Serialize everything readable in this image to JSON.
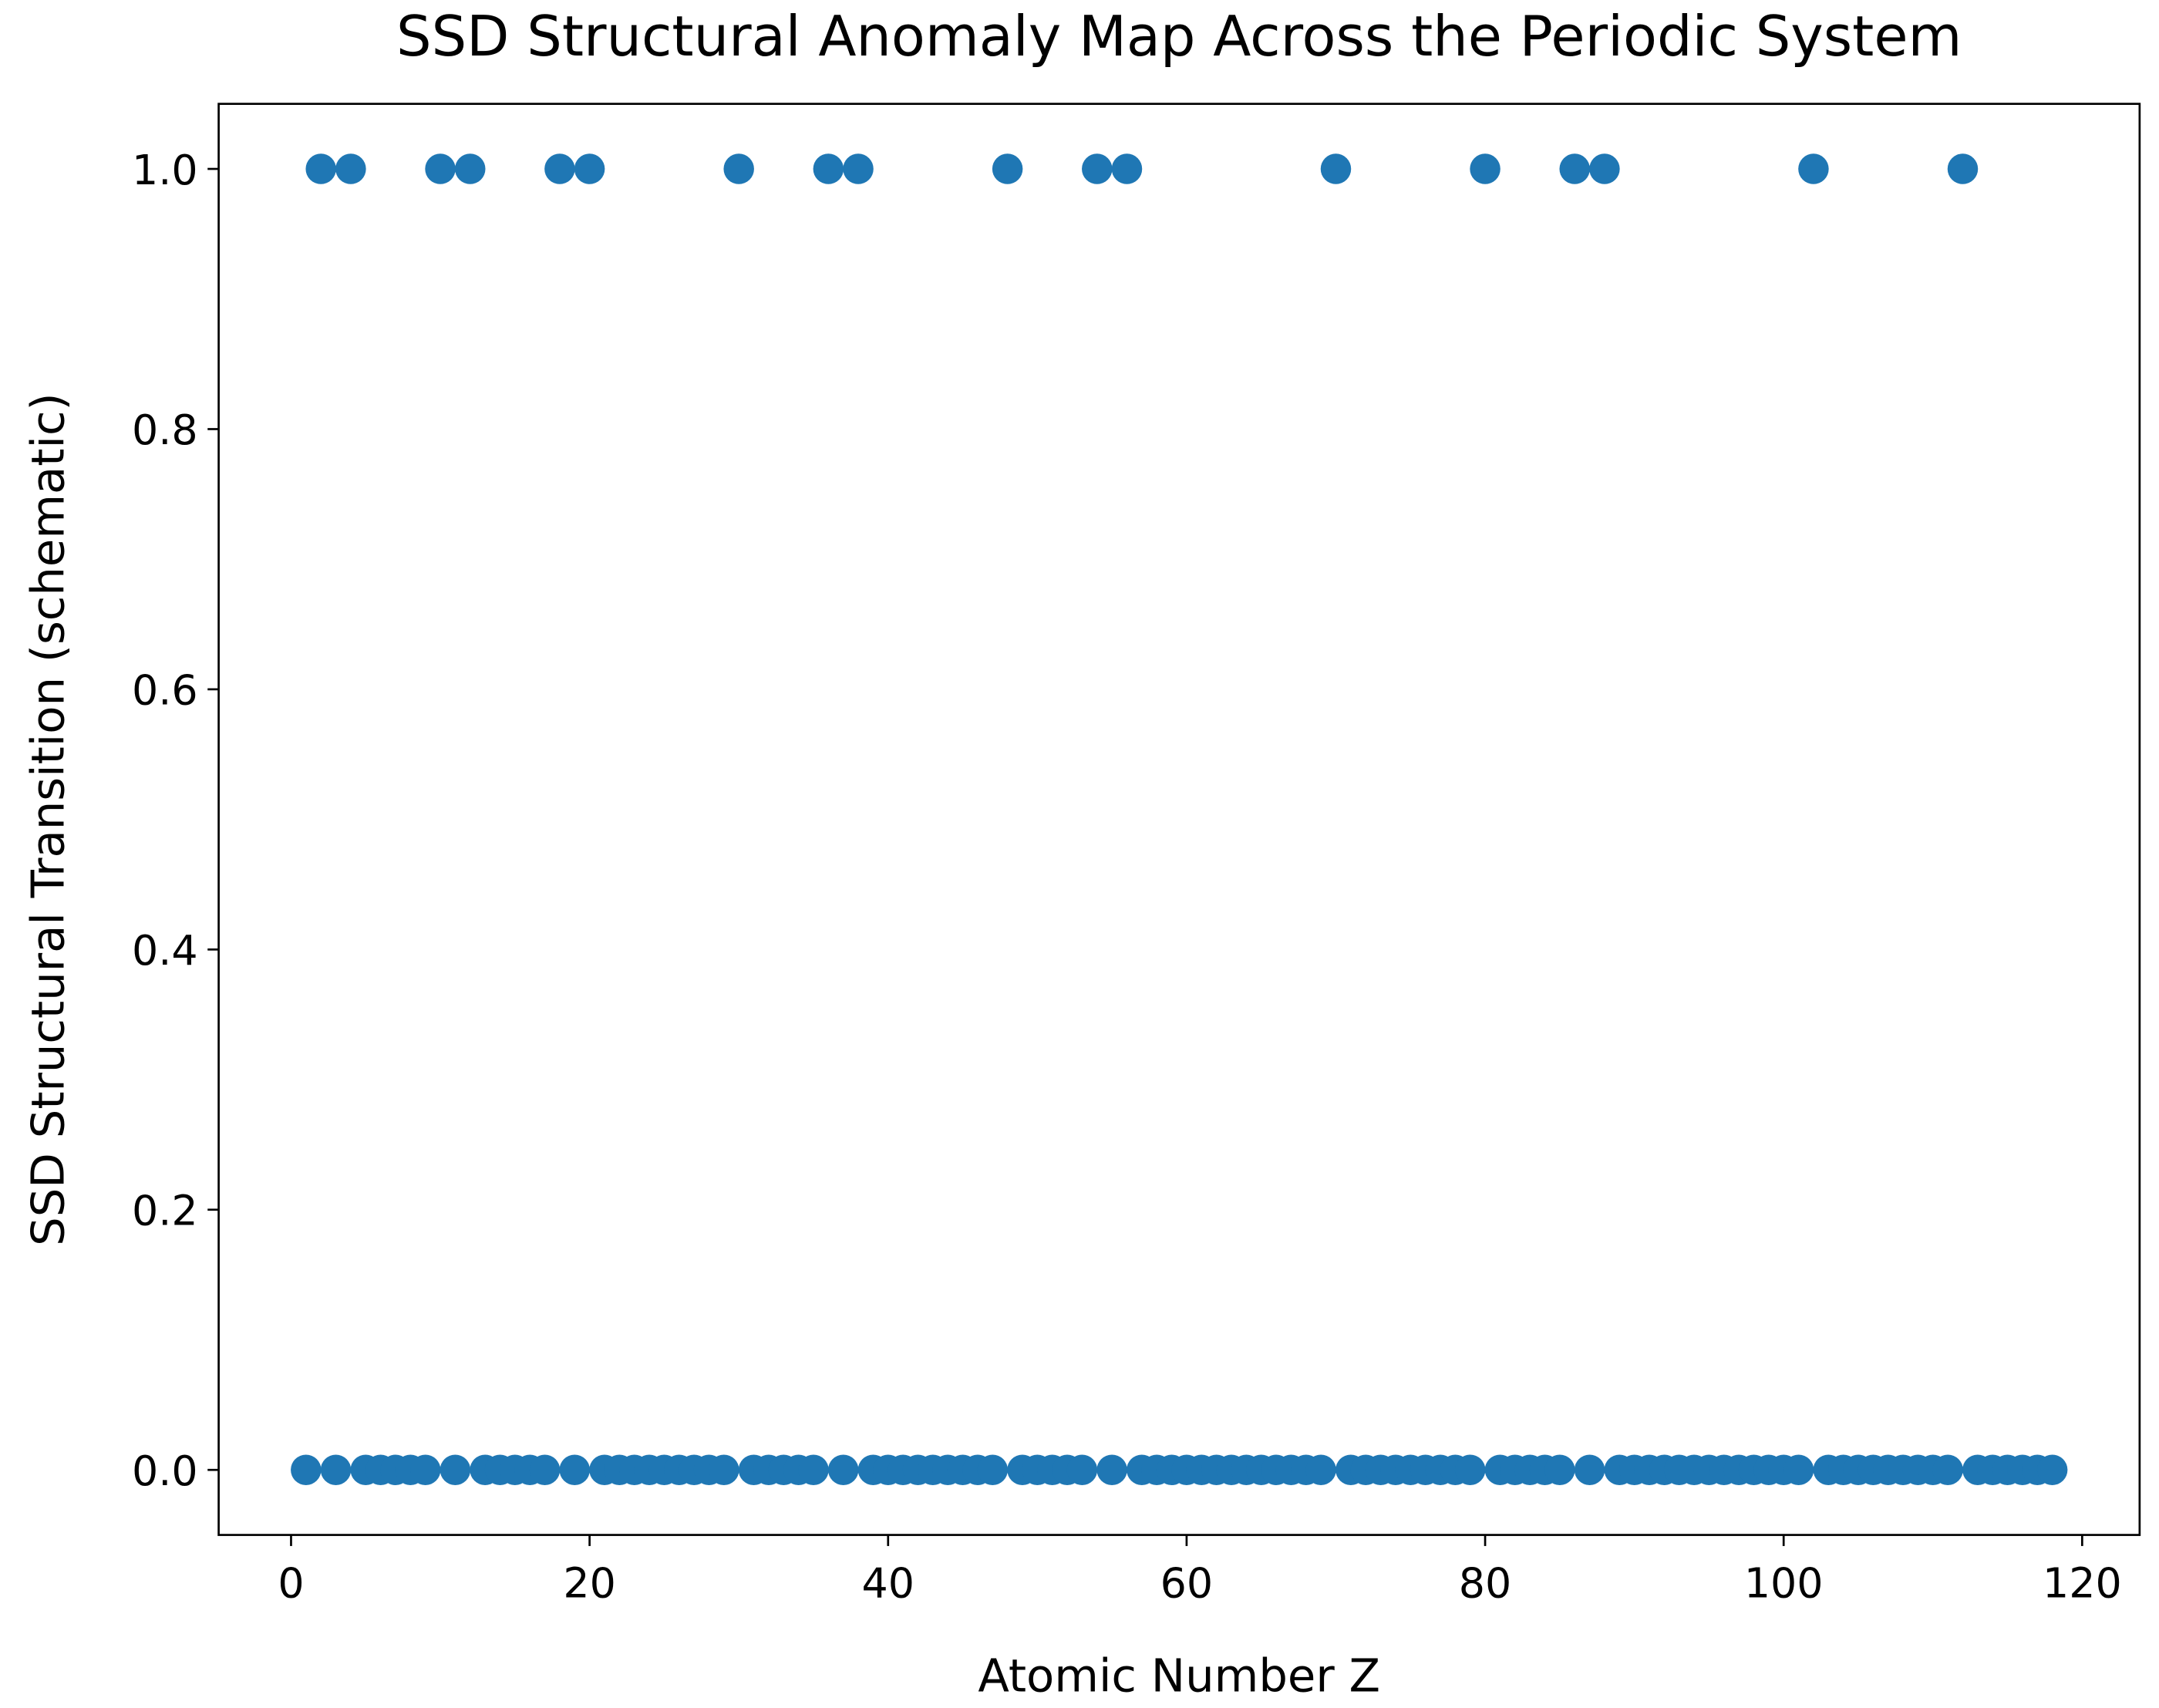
{
  "chart_data": {
    "type": "scatter",
    "title": "SSD Structural Anomaly Map Across the Periodic System",
    "x_label": "Atomic Number Z",
    "y_label": "SSD Structural Transition (schematic)",
    "color": "#1f77b4",
    "x": [
      1,
      2,
      3,
      4,
      5,
      6,
      7,
      8,
      9,
      10,
      11,
      12,
      13,
      14,
      15,
      16,
      17,
      18,
      19,
      20,
      21,
      22,
      23,
      24,
      25,
      26,
      27,
      28,
      29,
      30,
      31,
      32,
      33,
      34,
      35,
      36,
      37,
      38,
      39,
      40,
      41,
      42,
      43,
      44,
      45,
      46,
      47,
      48,
      49,
      50,
      51,
      52,
      53,
      54,
      55,
      56,
      57,
      58,
      59,
      60,
      61,
      62,
      63,
      64,
      65,
      66,
      67,
      68,
      69,
      70,
      71,
      72,
      73,
      74,
      75,
      76,
      77,
      78,
      79,
      80,
      81,
      82,
      83,
      84,
      85,
      86,
      87,
      88,
      89,
      90,
      91,
      92,
      93,
      94,
      95,
      96,
      97,
      98,
      99,
      100,
      101,
      102,
      103,
      104,
      105,
      106,
      107,
      108,
      109,
      110,
      111,
      112,
      113,
      114,
      115,
      116,
      117,
      118
    ],
    "values": [
      0,
      1,
      0,
      1,
      0,
      0,
      0,
      0,
      0,
      1,
      0,
      1,
      0,
      0,
      0,
      0,
      0,
      1,
      0,
      1,
      0,
      0,
      0,
      0,
      0,
      0,
      0,
      0,
      0,
      1,
      0,
      0,
      0,
      0,
      0,
      1,
      0,
      1,
      0,
      0,
      0,
      0,
      0,
      0,
      0,
      0,
      0,
      1,
      0,
      0,
      0,
      0,
      0,
      1,
      0,
      1,
      0,
      0,
      0,
      0,
      0,
      0,
      0,
      0,
      0,
      0,
      0,
      0,
      0,
      1,
      0,
      0,
      0,
      0,
      0,
      0,
      0,
      0,
      0,
      1,
      0,
      0,
      0,
      0,
      0,
      1,
      0,
      1,
      0,
      0,
      0,
      0,
      0,
      0,
      0,
      0,
      0,
      0,
      0,
      0,
      0,
      1,
      0,
      0,
      0,
      0,
      0,
      0,
      0,
      0,
      0,
      1,
      0,
      0,
      0,
      0,
      0,
      0
    ],
    "xlim": [
      -4.85,
      123.85
    ],
    "xticks": [
      0,
      20,
      40,
      60,
      80,
      100,
      120
    ],
    "ylim": [
      -0.05,
      1.05
    ],
    "yticks": [
      {
        "value": 0,
        "label": "0.0"
      },
      {
        "value": 0.2,
        "label": "0.2"
      },
      {
        "value": 0.4,
        "label": "0.4"
      },
      {
        "value": 0.6,
        "label": "0.6"
      },
      {
        "value": 0.8,
        "label": "0.8"
      },
      {
        "value": 1,
        "label": "1.0"
      }
    ]
  }
}
